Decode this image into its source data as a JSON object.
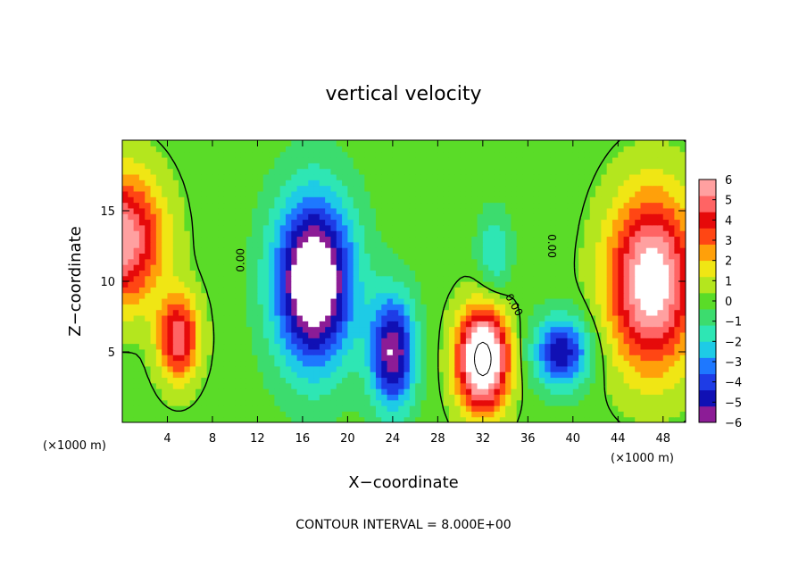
{
  "chart_data": {
    "type": "heatmap",
    "title": "vertical velocity",
    "xlabel": "X−coordinate",
    "ylabel": "Z−coordinate",
    "x_unit": "(×1000 m)",
    "y_unit": "(×1000 m)",
    "xlim": [
      0,
      50
    ],
    "ylim": [
      0,
      20
    ],
    "x_ticks": [
      4,
      8,
      12,
      16,
      20,
      24,
      28,
      32,
      36,
      40,
      44,
      48
    ],
    "y_ticks": [
      5,
      10,
      15
    ],
    "colorbar": {
      "min": -6,
      "max": 6,
      "ticks": [
        6,
        5,
        4,
        3,
        2,
        1,
        0,
        -1,
        -2,
        -3,
        -4,
        -5,
        -6
      ],
      "tick_labels": [
        "6",
        "5",
        "4",
        "3",
        "2",
        "1",
        "0",
        "−1",
        "−2",
        "−3",
        "−4",
        "−5",
        "−6"
      ],
      "colors": [
        "#8c1c96",
        "#1010b4",
        "#1e3ce6",
        "#1e78ff",
        "#1ecbe6",
        "#2ee6b4",
        "#3cdc6e",
        "#5adc28",
        "#b4e61e",
        "#f0e614",
        "#ffa00a",
        "#ff4614",
        "#e60a0a",
        "#ff6464",
        "#ffa0a0"
      ]
    },
    "contour_label": "0.00",
    "contour_interval_note": "CONTOUR INTERVAL = 8.000E+00",
    "features": [
      {
        "kind": "updraft",
        "x": 0,
        "z": 13,
        "sx": 3.5,
        "sz": 4.5,
        "value": 6
      },
      {
        "kind": "updraft",
        "x": 5,
        "z": 6,
        "sx": 1.8,
        "sz": 3,
        "value": 5
      },
      {
        "kind": "updraft",
        "x": 32,
        "z": 4.5,
        "sx": 2.2,
        "sz": 3.5,
        "value": 9
      },
      {
        "kind": "updraft",
        "x": 47,
        "z": 10,
        "sx": 3.8,
        "sz": 6,
        "value": 7
      },
      {
        "kind": "downdraft",
        "x": 17,
        "z": 10,
        "sx": 3.5,
        "sz": 6,
        "value": -8
      },
      {
        "kind": "downdraft",
        "x": 24,
        "z": 5,
        "sx": 2,
        "sz": 4,
        "value": -6
      },
      {
        "kind": "downdraft",
        "x": 39,
        "z": 5,
        "sx": 2.5,
        "sz": 2.5,
        "value": -5
      },
      {
        "kind": "downdraft",
        "x": 33,
        "z": 12,
        "sx": 1.5,
        "sz": 3,
        "value": -2
      }
    ]
  }
}
